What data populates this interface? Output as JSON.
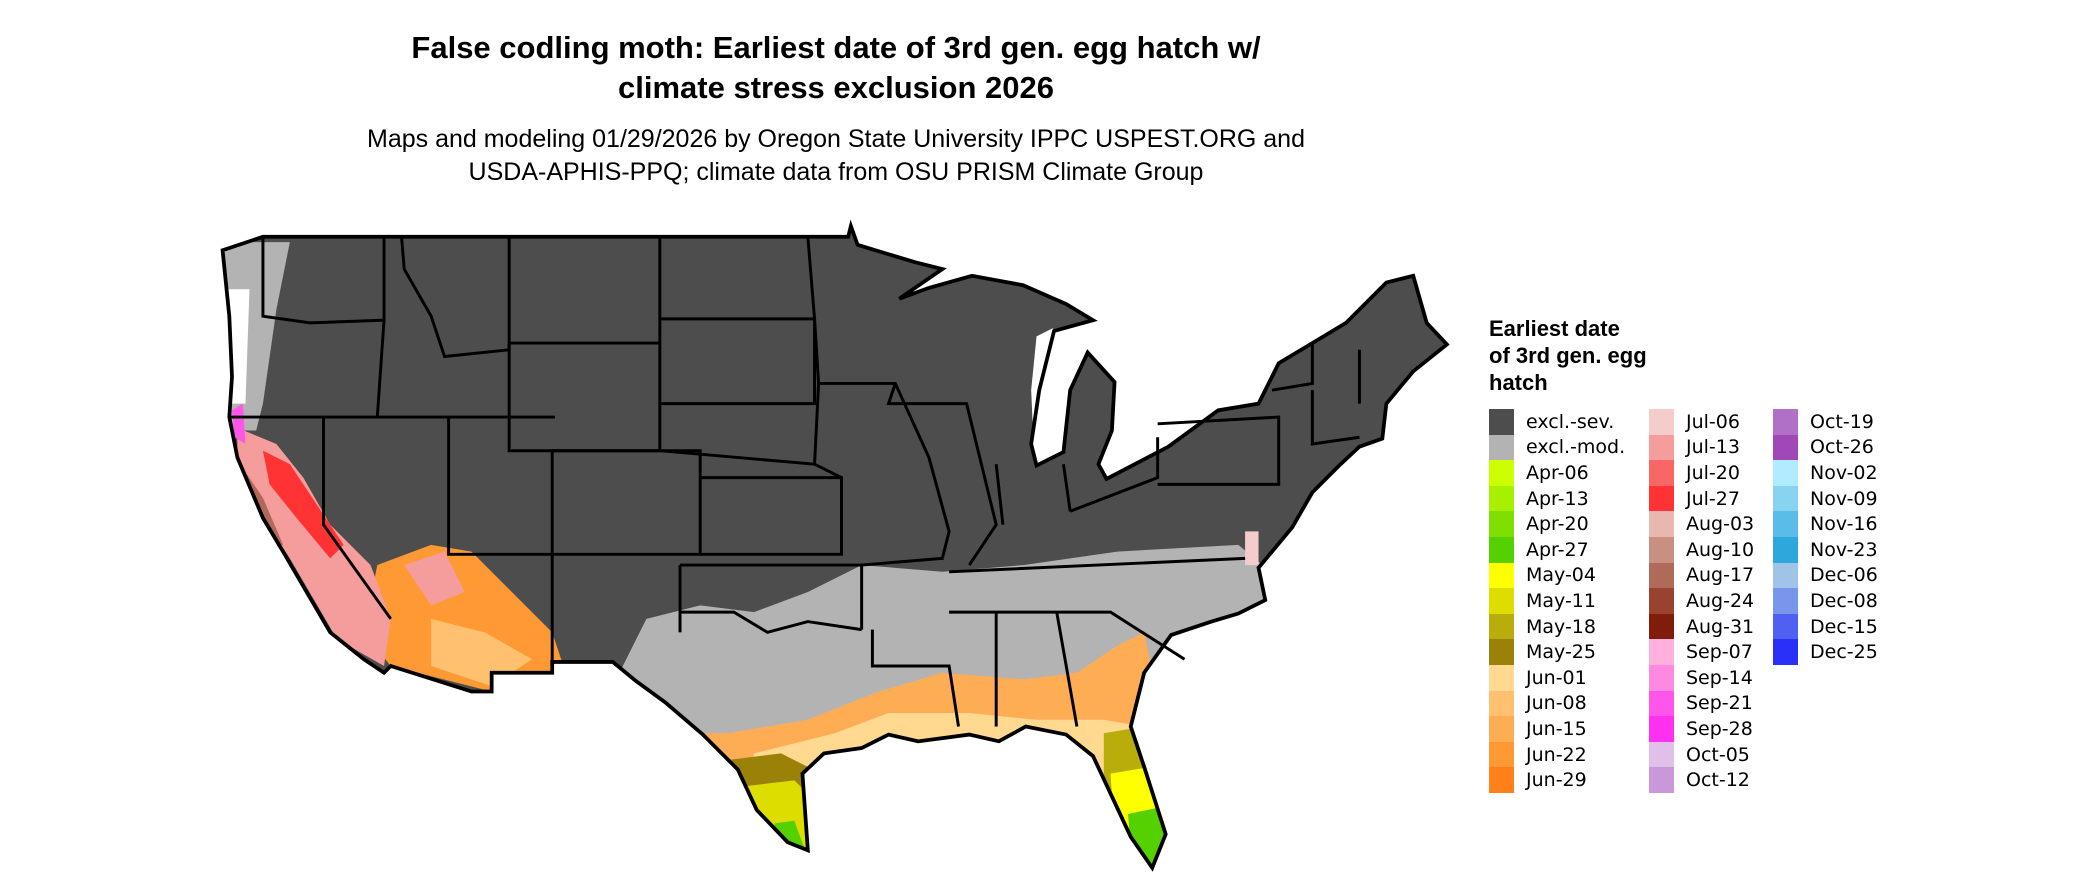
{
  "title": {
    "line1": "False codling moth: Earliest date of 3rd gen. egg hatch w/",
    "line2": "climate stress exclusion 2026"
  },
  "subtitle": {
    "line1": "Maps and modeling 01/29/2026 by Oregon State University IPPC USPEST.ORG and",
    "line2": "USDA-APHIS-PPQ; climate data from OSU PRISM Climate Group"
  },
  "legend": {
    "title_lines": [
      "Earliest date",
      "of 3rd gen. egg",
      "hatch"
    ],
    "items": [
      {
        "label": "excl.-sev.",
        "color": "#4d4d4d"
      },
      {
        "label": "excl.-mod.",
        "color": "#b3b3b3"
      },
      {
        "label": "Apr-06",
        "color": "#ccff00"
      },
      {
        "label": "Apr-13",
        "color": "#a6f000"
      },
      {
        "label": "Apr-20",
        "color": "#7fe000"
      },
      {
        "label": "Apr-27",
        "color": "#55d000"
      },
      {
        "label": "May-04",
        "color": "#ffff00"
      },
      {
        "label": "May-11",
        "color": "#dddd00"
      },
      {
        "label": "May-18",
        "color": "#b8ad0a"
      },
      {
        "label": "May-25",
        "color": "#9a8209"
      },
      {
        "label": "Jun-01",
        "color": "#ffd990"
      },
      {
        "label": "Jun-08",
        "color": "#ffc070"
      },
      {
        "label": "Jun-15",
        "color": "#ffad55"
      },
      {
        "label": "Jun-22",
        "color": "#ff9933"
      },
      {
        "label": "Jun-29",
        "color": "#ff8018"
      },
      {
        "label": "Jul-06",
        "color": "#f5cccc"
      },
      {
        "label": "Jul-13",
        "color": "#f59c9c"
      },
      {
        "label": "Jul-20",
        "color": "#f86666"
      },
      {
        "label": "Jul-27",
        "color": "#ff3333"
      },
      {
        "label": "Aug-03",
        "color": "#e8b8b0"
      },
      {
        "label": "Aug-10",
        "color": "#c89080"
      },
      {
        "label": "Aug-17",
        "color": "#b06a5a"
      },
      {
        "label": "Aug-24",
        "color": "#9a4230"
      },
      {
        "label": "Aug-31",
        "color": "#801c0a"
      },
      {
        "label": "Sep-07",
        "color": "#ffb0dd"
      },
      {
        "label": "Sep-14",
        "color": "#ff88e0"
      },
      {
        "label": "Sep-21",
        "color": "#ff55e8"
      },
      {
        "label": "Sep-28",
        "color": "#ff30f0"
      },
      {
        "label": "Oct-05",
        "color": "#e0c0e8"
      },
      {
        "label": "Oct-12",
        "color": "#c898d8"
      },
      {
        "label": "Oct-19",
        "color": "#b070c8"
      },
      {
        "label": "Oct-26",
        "color": "#a048b8"
      },
      {
        "label": "Nov-02",
        "color": "#b0ecff"
      },
      {
        "label": "Nov-09",
        "color": "#88d4f0"
      },
      {
        "label": "Nov-16",
        "color": "#5abce8"
      },
      {
        "label": "Nov-23",
        "color": "#2ea8dc"
      },
      {
        "label": "Dec-06",
        "color": "#a0c4e8"
      },
      {
        "label": "Dec-08",
        "color": "#7896ec"
      },
      {
        "label": "Dec-15",
        "color": "#5060f0"
      },
      {
        "label": "Dec-25",
        "color": "#2a30fa"
      }
    ]
  },
  "map": {
    "region": "Contiguous United States",
    "boundary_color": "#000000"
  }
}
